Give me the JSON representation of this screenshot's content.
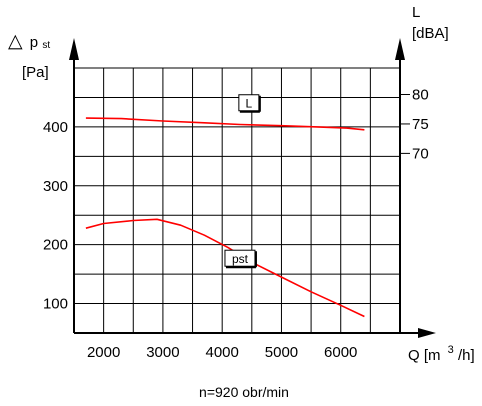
{
  "chart_data": {
    "type": "line",
    "footer_note": "n=920 obr/min",
    "x_axis": {
      "label_main": "Q [m",
      "label_sup": "3",
      "label_end": "/h]",
      "range": [
        1500,
        7000
      ],
      "ticks": [
        2000,
        3000,
        4000,
        5000,
        6000
      ],
      "tick_labels": [
        "2000",
        "3000",
        "4000",
        "5000",
        "6000"
      ]
    },
    "y_left": {
      "label_symbol": "△",
      "label_main": "p",
      "label_sub": "st",
      "unit": "[Pa]",
      "range": [
        50,
        500
      ],
      "ticks": [
        100,
        200,
        300,
        400
      ],
      "tick_labels": [
        "100",
        "200",
        "300",
        "400"
      ]
    },
    "y_right": {
      "label": "L",
      "unit": "[dBA]",
      "ticks": [
        70,
        75,
        80
      ],
      "tick_labels": [
        "70",
        "75",
        "80"
      ],
      "tick_positions_in_left_units": [
        355,
        405,
        455
      ]
    },
    "series": [
      {
        "name": "L",
        "color": "#ff0000",
        "x": [
          1700,
          2300,
          3000,
          3700,
          4300,
          5000,
          5600,
          6100,
          6400
        ],
        "y": [
          415,
          414,
          410,
          407,
          404,
          402,
          400,
          398,
          395
        ]
      },
      {
        "name": "pst",
        "color": "#ff0000",
        "x": [
          1700,
          2000,
          2500,
          2900,
          3300,
          3700,
          4100,
          4500,
          5000,
          5500,
          6000,
          6400
        ],
        "y": [
          228,
          236,
          241,
          243,
          233,
          216,
          195,
          170,
          145,
          120,
          97,
          78
        ]
      }
    ],
    "grid": true,
    "x_grid": [
      1500,
      2000,
      2500,
      3000,
      3500,
      4000,
      4500,
      5000,
      5500,
      6000,
      6500
    ],
    "y_grid": [
      50,
      100,
      150,
      200,
      250,
      300,
      350,
      400,
      450,
      500
    ]
  }
}
